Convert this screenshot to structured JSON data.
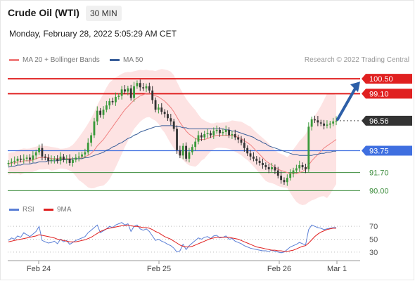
{
  "header": {
    "instrument": "Crude Oil (WTI)",
    "timeframe": "30 MIN",
    "datetime": "Monday, February 28, 2022 5:05:29 AM CET",
    "copyright": "Research © 2022 Trading Central"
  },
  "colors": {
    "bollinger": "#f08080",
    "ma50": "#3a5f9a",
    "resistance": "#e02020",
    "support": "#3c8c3c",
    "pivot": "#3f6fe0",
    "candle_up": "#3a9a3a",
    "candle_down": "#333333",
    "rsi": "#5a7fd6",
    "rsi_ma": "#e02020",
    "arrow": "#2d5fa8"
  },
  "chart_data": [
    {
      "type": "candlestick",
      "title": "Crude Oil (WTI)",
      "legend": [
        {
          "name": "MA 20 + Bollinger Bands",
          "color": "#f08080"
        },
        {
          "name": "MA 50",
          "color": "#3a5f9a"
        }
      ],
      "x_ticks": [
        "Feb 24",
        "Feb 25",
        "Feb 26",
        "Mar 1"
      ],
      "ylim": [
        89.3,
        101.3
      ],
      "levels": [
        {
          "value": 100.5,
          "label": "100.50",
          "kind": "resistance"
        },
        {
          "value": 99.1,
          "label": "99.10",
          "kind": "resistance"
        },
        {
          "value": 96.56,
          "label": "96.56",
          "kind": "last"
        },
        {
          "value": 93.75,
          "label": "93.75",
          "kind": "pivot"
        },
        {
          "value": 91.7,
          "label": "91.70",
          "kind": "support"
        },
        {
          "value": 90.0,
          "label": "90.00",
          "kind": "support"
        }
      ],
      "close_series": [
        92.6,
        92.7,
        92.8,
        93.0,
        92.9,
        93.0,
        93.1,
        92.9,
        93.3,
        93.6,
        94.0,
        93.2,
        93.1,
        92.8,
        92.9,
        93.0,
        92.8,
        93.2,
        92.9,
        93.0,
        92.6,
        92.9,
        93.1,
        93.2,
        93.4,
        93.6,
        94.5,
        95.2,
        96.5,
        97.5,
        97.1,
        97.6,
        98.0,
        98.4,
        98.3,
        98.8,
        98.9,
        99.5,
        99.3,
        99.6,
        98.7,
        99.8,
        100.1,
        99.7,
        99.6,
        99.8,
        99.4,
        98.5,
        97.6,
        97.8,
        97.4,
        97.2,
        96.8,
        96.5,
        95.8,
        93.8,
        93.3,
        94.2,
        93.0,
        93.6,
        94.1,
        94.6,
        95.2,
        95.0,
        95.3,
        95.4,
        95.2,
        95.6,
        95.7,
        95.4,
        95.5,
        95.7,
        95.2,
        95.3,
        95.0,
        94.8,
        94.5,
        94.0,
        93.5,
        93.2,
        93.0,
        92.8,
        92.6,
        92.4,
        92.2,
        92.0,
        92.2,
        91.9,
        91.4,
        91.0,
        90.8,
        91.2,
        91.6,
        91.9,
        92.1,
        92.4,
        92.2,
        92.0,
        96.0,
        96.7,
        96.6,
        96.4,
        96.3,
        96.1,
        96.2,
        96.3,
        96.5,
        96.56
      ],
      "ma20_series": [
        92.5,
        92.6,
        92.6,
        92.7,
        92.7,
        92.8,
        92.8,
        92.8,
        92.9,
        93.0,
        93.1,
        93.1,
        93.1,
        93.1,
        93.0,
        93.0,
        93.0,
        93.0,
        93.0,
        93.0,
        93.0,
        93.0,
        93.0,
        93.0,
        93.1,
        93.2,
        93.3,
        93.5,
        93.8,
        94.2,
        94.5,
        94.8,
        95.2,
        95.6,
        96.0,
        96.4,
        96.8,
        97.2,
        97.6,
        97.9,
        98.2,
        98.5,
        98.7,
        98.9,
        99.0,
        99.1,
        99.1,
        99.0,
        98.9,
        98.8,
        98.6,
        98.4,
        98.1,
        97.8,
        97.4,
        96.9,
        96.4,
        96.0,
        95.6,
        95.3,
        95.1,
        94.9,
        94.8,
        94.8,
        94.8,
        94.9,
        95.0,
        95.1,
        95.2,
        95.2,
        95.2,
        95.2,
        95.2,
        95.2,
        95.1,
        95.0,
        94.9,
        94.7,
        94.5,
        94.3,
        94.0,
        93.7,
        93.4,
        93.1,
        92.8,
        92.6,
        92.4,
        92.2,
        92.0,
        91.9,
        91.8,
        91.7,
        91.6,
        91.6,
        91.6,
        91.7,
        91.8,
        92.0,
        92.4,
        92.8,
        93.1,
        93.4,
        93.7,
        94.0,
        94.2,
        94.4,
        94.6,
        94.8
      ],
      "ma50_series": [
        92.2,
        92.3,
        92.3,
        92.4,
        92.4,
        92.5,
        92.5,
        92.5,
        92.6,
        92.6,
        92.7,
        92.7,
        92.7,
        92.8,
        92.8,
        92.8,
        92.8,
        92.9,
        92.9,
        92.9,
        92.9,
        93.0,
        93.0,
        93.0,
        93.0,
        93.1,
        93.1,
        93.2,
        93.3,
        93.4,
        93.5,
        93.6,
        93.8,
        93.9,
        94.1,
        94.2,
        94.4,
        94.5,
        94.7,
        94.9,
        95.0,
        95.2,
        95.3,
        95.5,
        95.6,
        95.7,
        95.8,
        95.9,
        96.0,
        96.0,
        96.1,
        96.1,
        96.1,
        96.1,
        96.1,
        96.0,
        96.0,
        95.9,
        95.9,
        95.8,
        95.8,
        95.8,
        95.8,
        95.8,
        95.8,
        95.8,
        95.8,
        95.8,
        95.8,
        95.8,
        95.8,
        95.7,
        95.7,
        95.6,
        95.6,
        95.5,
        95.4,
        95.3,
        95.2,
        95.1,
        95.0,
        94.8,
        94.7,
        94.5,
        94.4,
        94.2,
        94.1,
        94.0,
        93.9,
        93.8,
        93.7,
        93.6,
        93.5,
        93.4,
        93.4,
        93.3,
        93.3,
        93.3,
        93.3,
        93.3,
        93.4,
        93.4,
        93.5,
        93.5,
        93.6,
        93.6,
        93.7,
        93.7
      ]
    },
    {
      "type": "line",
      "title": "",
      "legend": [
        {
          "name": "RSI",
          "color": "#5a7fd6"
        },
        {
          "name": "9MA",
          "color": "#e02020"
        }
      ],
      "ylim": [
        20,
        80
      ],
      "y_ticks": [
        70,
        50,
        30
      ],
      "rsi_series": [
        48,
        52,
        50,
        55,
        53,
        60,
        57,
        54,
        58,
        62,
        70,
        48,
        46,
        44,
        45,
        47,
        43,
        50,
        46,
        48,
        42,
        45,
        48,
        50,
        52,
        54,
        60,
        64,
        68,
        72,
        60,
        63,
        66,
        70,
        68,
        72,
        74,
        76,
        72,
        74,
        62,
        70,
        72,
        66,
        64,
        66,
        62,
        55,
        48,
        50,
        47,
        45,
        42,
        40,
        36,
        30,
        32,
        42,
        34,
        40,
        44,
        48,
        52,
        50,
        53,
        54,
        51,
        55,
        56,
        52,
        53,
        55,
        50,
        51,
        47,
        45,
        43,
        40,
        38,
        36,
        35,
        34,
        33,
        32,
        32,
        31,
        33,
        31,
        30,
        29,
        30,
        34,
        38,
        40,
        42,
        45,
        43,
        41,
        65,
        72,
        70,
        68,
        67,
        65,
        66,
        67,
        68,
        68
      ],
      "ma9_series": [
        46,
        47,
        48,
        49,
        50,
        51,
        52,
        53,
        54,
        55,
        57,
        56,
        55,
        54,
        53,
        52,
        50,
        49,
        48,
        47,
        46,
        46,
        46,
        47,
        48,
        49,
        51,
        53,
        56,
        59,
        62,
        64,
        66,
        67,
        68,
        69,
        70,
        71,
        71,
        72,
        71,
        70,
        70,
        69,
        68,
        68,
        67,
        65,
        62,
        60,
        57,
        54,
        52,
        50,
        47,
        44,
        41,
        39,
        38,
        38,
        39,
        41,
        43,
        45,
        47,
        49,
        51,
        52,
        53,
        53,
        53,
        53,
        53,
        52,
        51,
        50,
        48,
        46,
        44,
        42,
        40,
        38,
        37,
        36,
        35,
        34,
        33,
        33,
        32,
        32,
        31,
        31,
        32,
        33,
        35,
        37,
        39,
        40,
        44,
        49,
        54,
        58,
        61,
        63,
        65,
        66,
        67,
        67
      ]
    }
  ]
}
